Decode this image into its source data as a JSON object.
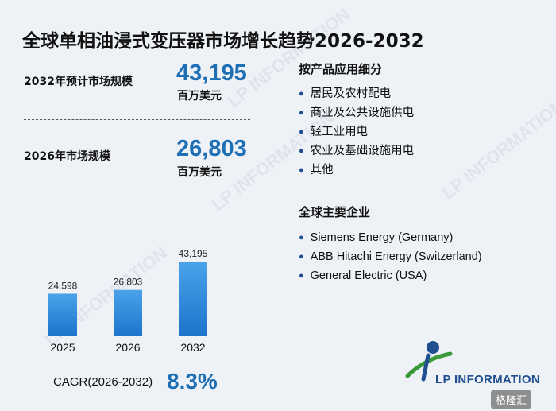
{
  "title": "全球单相油浸式变压器市场增长趋势2026-2032",
  "kpi": [
    {
      "label": "2032年预计市场规模",
      "value": "43,195",
      "unit": "百万美元"
    },
    {
      "label": "2026年市场规模",
      "value": "26,803",
      "unit": "百万美元"
    }
  ],
  "chart_data": {
    "type": "bar",
    "categories": [
      "2025",
      "2026",
      "2032"
    ],
    "values": [
      24598,
      26803,
      43195
    ],
    "value_labels": [
      "24,598",
      "26,803",
      "43,195"
    ],
    "title": "",
    "xlabel": "",
    "ylabel": "",
    "bar_color_top": "#4aa3ea",
    "bar_color_bottom": "#1c74cc",
    "grid": false
  },
  "cagr": {
    "label": "CAGR(2026-2032)",
    "value": "8.3%"
  },
  "segments": {
    "title": "按产品应用细分",
    "items": [
      "居民及农村配电",
      "商业及公共设施供电",
      "轻工业用电",
      "农业及基础设施用电",
      "其他"
    ]
  },
  "companies": {
    "title": "全球主要企业",
    "items": [
      "Siemens Energy (Germany)",
      "ABB Hitachi Energy (Switzerland)",
      "General Electric (USA)"
    ]
  },
  "brand": {
    "name": "LP INFORMATION",
    "watermark": "LP INFORMATION",
    "corner_badge": "格隆汇"
  },
  "colors": {
    "accent": "#1f6fb5",
    "brand_blue": "#1f4f8f",
    "brand_green": "#3a9a3a",
    "background": "#eef2f7"
  }
}
